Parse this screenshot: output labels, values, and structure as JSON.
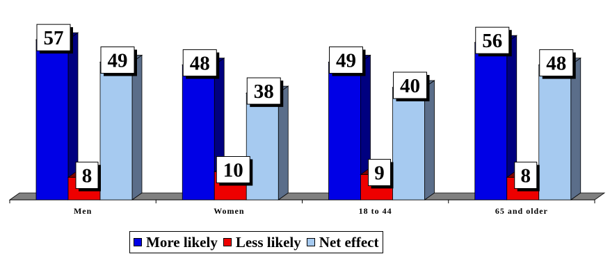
{
  "chart_data": {
    "type": "bar",
    "categories": [
      "Men",
      "Women",
      "18 to 44",
      "65 and older"
    ],
    "series": [
      {
        "name": "More likely",
        "values": [
          57,
          48,
          49,
          56
        ],
        "color": "#0000E6",
        "side_color": "#000080"
      },
      {
        "name": "Less likely",
        "values": [
          8,
          10,
          9,
          8
        ],
        "color": "#EE0000",
        "side_color": "#800000"
      },
      {
        "name": "Net effect",
        "values": [
          49,
          38,
          40,
          48
        ],
        "color": "#A6CAF0",
        "side_color": "#5B6E8A"
      }
    ],
    "data_labels": true,
    "legend_position": "bottom",
    "grid": false,
    "ylim": [
      0,
      60
    ],
    "title": "",
    "xlabel": "",
    "ylabel": ""
  },
  "legend": {
    "items": [
      {
        "label": "More likely",
        "color": "#0000E6"
      },
      {
        "label": "Less likely",
        "color": "#EE0000"
      },
      {
        "label": "Net effect",
        "color": "#A6CAF0"
      }
    ]
  }
}
